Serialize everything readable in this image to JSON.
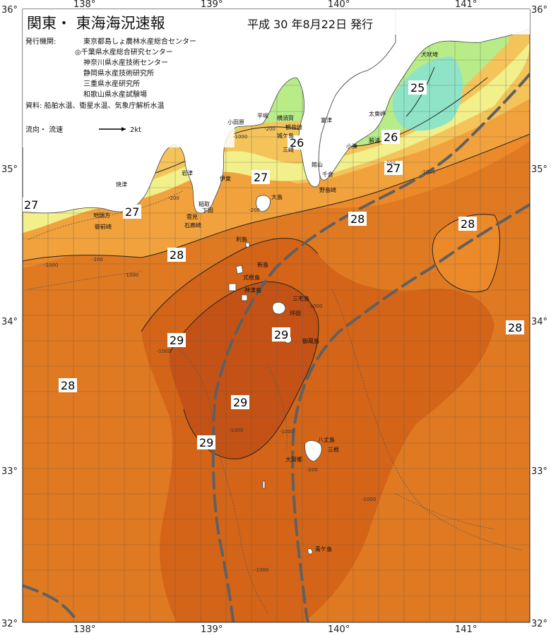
{
  "header": {
    "title": "関東・ 東海海況速報",
    "date": "平成  30 年8月22日  発行"
  },
  "issuers": {
    "label": "発行機関:",
    "lines": [
      "東京都島しょ農林水産総合センター",
      "◎千葉県水産総合研究センター",
      "神奈川県水産技術センター",
      "静岡県水産技術研究所",
      "三重県水産研究所",
      "和歌山県水産試験場"
    ],
    "sources": "資料: 船舶水温、衛星水温、気象庁解析水温"
  },
  "current_legend": {
    "label": "流向・ 流速",
    "speed": "2kt"
  },
  "axes": {
    "lon_ticks": [
      "138°",
      "139°",
      "140°",
      "141°"
    ],
    "lat_ticks": [
      "36°",
      "35°",
      "34°",
      "33°",
      "32°"
    ]
  },
  "isotherms": [
    "25",
    "26",
    "26",
    "27",
    "27",
    "27",
    "27",
    "28",
    "28",
    "28",
    "28",
    "29",
    "29",
    "29",
    "29"
  ],
  "depth_contours": [
    "-200",
    "-200",
    "-200",
    "-200",
    "-200",
    "-200",
    "-1000",
    "-1000",
    "-1000",
    "-1000",
    "-1000",
    "-1000",
    "-1000",
    "-1000",
    "-1000",
    "-1000"
  ],
  "places": [
    "犬吠埼",
    "太東岬",
    "勝浦",
    "小湊",
    "千倉",
    "館山",
    "野島崎",
    "富津",
    "観音崎",
    "城ケ島",
    "三崎",
    "横須賀",
    "平塚",
    "小田原",
    "伊東",
    "稲取",
    "下田",
    "石廊崎",
    "雲見",
    "大島",
    "焼津",
    "御前崎",
    "地頭方",
    "岩津",
    "利島",
    "新島",
    "式根島",
    "神津島",
    "三宅島",
    "坪田",
    "御蔵島",
    "八丈島",
    "三根",
    "大賀郷",
    "青ケ島"
  ],
  "colors": {
    "t24": "#8fe4c8",
    "t25": "#b8ec88",
    "t26": "#f2f08a",
    "t27": "#f4c45a",
    "t28a": "#f2a23c",
    "t28": "#ec8a2a",
    "t285": "#e07a22",
    "t29": "#d46418",
    "t295": "#c45216",
    "land": "#ffffff",
    "current": "#606060"
  }
}
